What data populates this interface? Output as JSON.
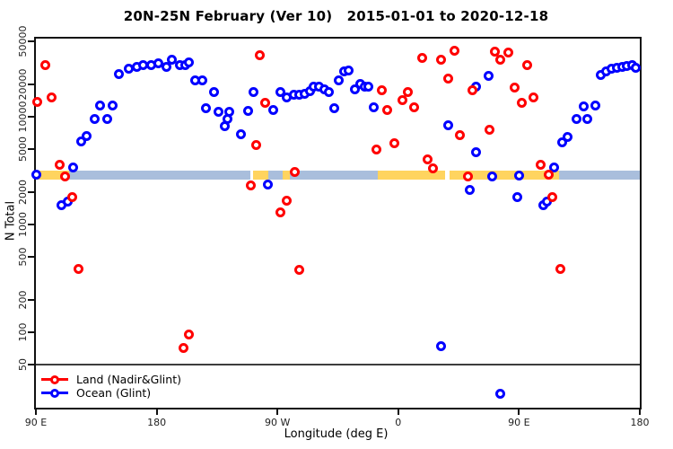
{
  "title": "20N-25N February (Ver 10)   2015-01-01 to 2020-12-18",
  "chart_data": {
    "type": "scatter",
    "title": "20N-25N February (Ver 10)   2015-01-01 to 2020-12-18",
    "xlabel": "Longitude (deg E)",
    "ylabel": "N Total",
    "grid": false,
    "legend_position": "bottom-left inside",
    "x_axis": {
      "note": "longitude axis wraps: spans 450 degrees starting at 90E",
      "range": [
        90,
        540
      ],
      "ticks": [
        90,
        180,
        270,
        360,
        450,
        540
      ],
      "labels": [
        "90 E",
        "180",
        "90 W",
        "0",
        "90 E",
        "180"
      ]
    },
    "y_axis": {
      "scale": "log",
      "range": [
        20,
        53000
      ],
      "ticks": [
        50,
        100,
        200,
        500,
        1000,
        2000,
        5000,
        10000,
        20000,
        50000
      ]
    },
    "baseline": {
      "value": 50,
      "color": "#3d3d3d"
    },
    "band": {
      "note": "dense horizontal band of samples near N=2900 across all longitudes",
      "n_low": 2600,
      "n_high": 3150,
      "colors": {
        "land": "#FFD45F",
        "ocean": "#A9BEDC"
      },
      "segments": [
        {
          "from": 90,
          "to": 115,
          "color": "land"
        },
        {
          "from": 115,
          "to": 250,
          "color": "ocean"
        },
        {
          "from": 252,
          "to": 263,
          "color": "land"
        },
        {
          "from": 263,
          "to": 345,
          "color": "ocean"
        },
        {
          "from": 274,
          "to": 279,
          "color": "land"
        },
        {
          "from": 345,
          "to": 395,
          "color": "land"
        },
        {
          "from": 398,
          "to": 480,
          "color": "land"
        },
        {
          "from": 480,
          "to": 540,
          "color": "ocean"
        }
      ]
    },
    "series": [
      {
        "name": "Land (Nadir&Glint)",
        "color": "#FF0000",
        "points": [
          [
            97,
            30000
          ],
          [
            91,
            13800
          ],
          [
            102,
            15100
          ],
          [
            108,
            3600
          ],
          [
            112,
            2800
          ],
          [
            117,
            1800
          ],
          [
            122,
            390
          ],
          [
            200,
            72
          ],
          [
            204,
            96
          ],
          [
            250,
            2300
          ],
          [
            254,
            5500
          ],
          [
            257,
            37000
          ],
          [
            261,
            13500
          ],
          [
            272,
            1300
          ],
          [
            277,
            1650
          ],
          [
            283,
            3100
          ],
          [
            286,
            380
          ],
          [
            344,
            5000
          ],
          [
            348,
            17600
          ],
          [
            352,
            11600
          ],
          [
            357,
            5700
          ],
          [
            363,
            14300
          ],
          [
            367,
            17000
          ],
          [
            372,
            12200
          ],
          [
            378,
            35000
          ],
          [
            382,
            4000
          ],
          [
            386,
            3300
          ],
          [
            392,
            34000
          ],
          [
            397,
            22600
          ],
          [
            402,
            41000
          ],
          [
            406,
            6800
          ],
          [
            412,
            2800
          ],
          [
            415,
            17600
          ],
          [
            428,
            7500
          ],
          [
            432,
            40000
          ],
          [
            436,
            34000
          ],
          [
            442,
            39000
          ],
          [
            447,
            18700
          ],
          [
            452,
            13400
          ],
          [
            456,
            30000
          ],
          [
            461,
            15200
          ],
          [
            466,
            3560
          ],
          [
            472,
            2880
          ],
          [
            475,
            1800
          ],
          [
            481,
            390
          ]
        ]
      },
      {
        "name": "Ocean (Glint)",
        "color": "#0000FF",
        "points": [
          [
            90,
            2900
          ],
          [
            109,
            1520
          ],
          [
            114,
            1620
          ],
          [
            118,
            3400
          ],
          [
            124,
            5900
          ],
          [
            128,
            6600
          ],
          [
            134,
            9500
          ],
          [
            138,
            12600
          ],
          [
            143,
            9500
          ],
          [
            147,
            12600
          ],
          [
            152,
            25000
          ],
          [
            159,
            28000
          ],
          [
            165,
            29000
          ],
          [
            170,
            30000
          ],
          [
            176,
            30000
          ],
          [
            181,
            31000
          ],
          [
            187,
            29000
          ],
          [
            191,
            34000
          ],
          [
            197,
            30000
          ],
          [
            201,
            30000
          ],
          [
            204,
            32000
          ],
          [
            209,
            21600
          ],
          [
            214,
            21700
          ],
          [
            217,
            12000
          ],
          [
            223,
            17000
          ],
          [
            226,
            11000
          ],
          [
            231,
            8200
          ],
          [
            233,
            9500
          ],
          [
            234,
            11000
          ],
          [
            243,
            6900
          ],
          [
            248,
            11300
          ],
          [
            252,
            16800
          ],
          [
            263,
            2350
          ],
          [
            267,
            11600
          ],
          [
            272,
            16800
          ],
          [
            277,
            15200
          ],
          [
            282,
            15900
          ],
          [
            286,
            16100
          ],
          [
            290,
            16300
          ],
          [
            294,
            17300
          ],
          [
            297,
            19000
          ],
          [
            301,
            19100
          ],
          [
            305,
            18100
          ],
          [
            308,
            17000
          ],
          [
            312,
            12000
          ],
          [
            316,
            21600
          ],
          [
            320,
            26500
          ],
          [
            323,
            27000
          ],
          [
            328,
            18100
          ],
          [
            332,
            20300
          ],
          [
            335,
            19000
          ],
          [
            338,
            19100
          ],
          [
            342,
            12200
          ],
          [
            392,
            74
          ],
          [
            397,
            8400
          ],
          [
            413,
            2100
          ],
          [
            418,
            19100
          ],
          [
            418,
            4700
          ],
          [
            427,
            24000
          ],
          [
            430,
            2800
          ],
          [
            436,
            27
          ],
          [
            449,
            1800
          ],
          [
            450,
            2850
          ],
          [
            468,
            1520
          ],
          [
            471,
            1620
          ],
          [
            476,
            3400
          ],
          [
            482,
            5800
          ],
          [
            486,
            6500
          ],
          [
            493,
            9500
          ],
          [
            498,
            12400
          ],
          [
            501,
            9600
          ],
          [
            507,
            12800
          ],
          [
            511,
            24500
          ],
          [
            515,
            26500
          ],
          [
            519,
            28000
          ],
          [
            523,
            28500
          ],
          [
            527,
            29000
          ],
          [
            530,
            29500
          ],
          [
            534,
            30000
          ],
          [
            537,
            28300
          ]
        ]
      }
    ]
  },
  "legend": {
    "items": [
      {
        "label": "Land (Nadir&Glint)"
      },
      {
        "label": "Ocean (Glint)"
      }
    ]
  }
}
